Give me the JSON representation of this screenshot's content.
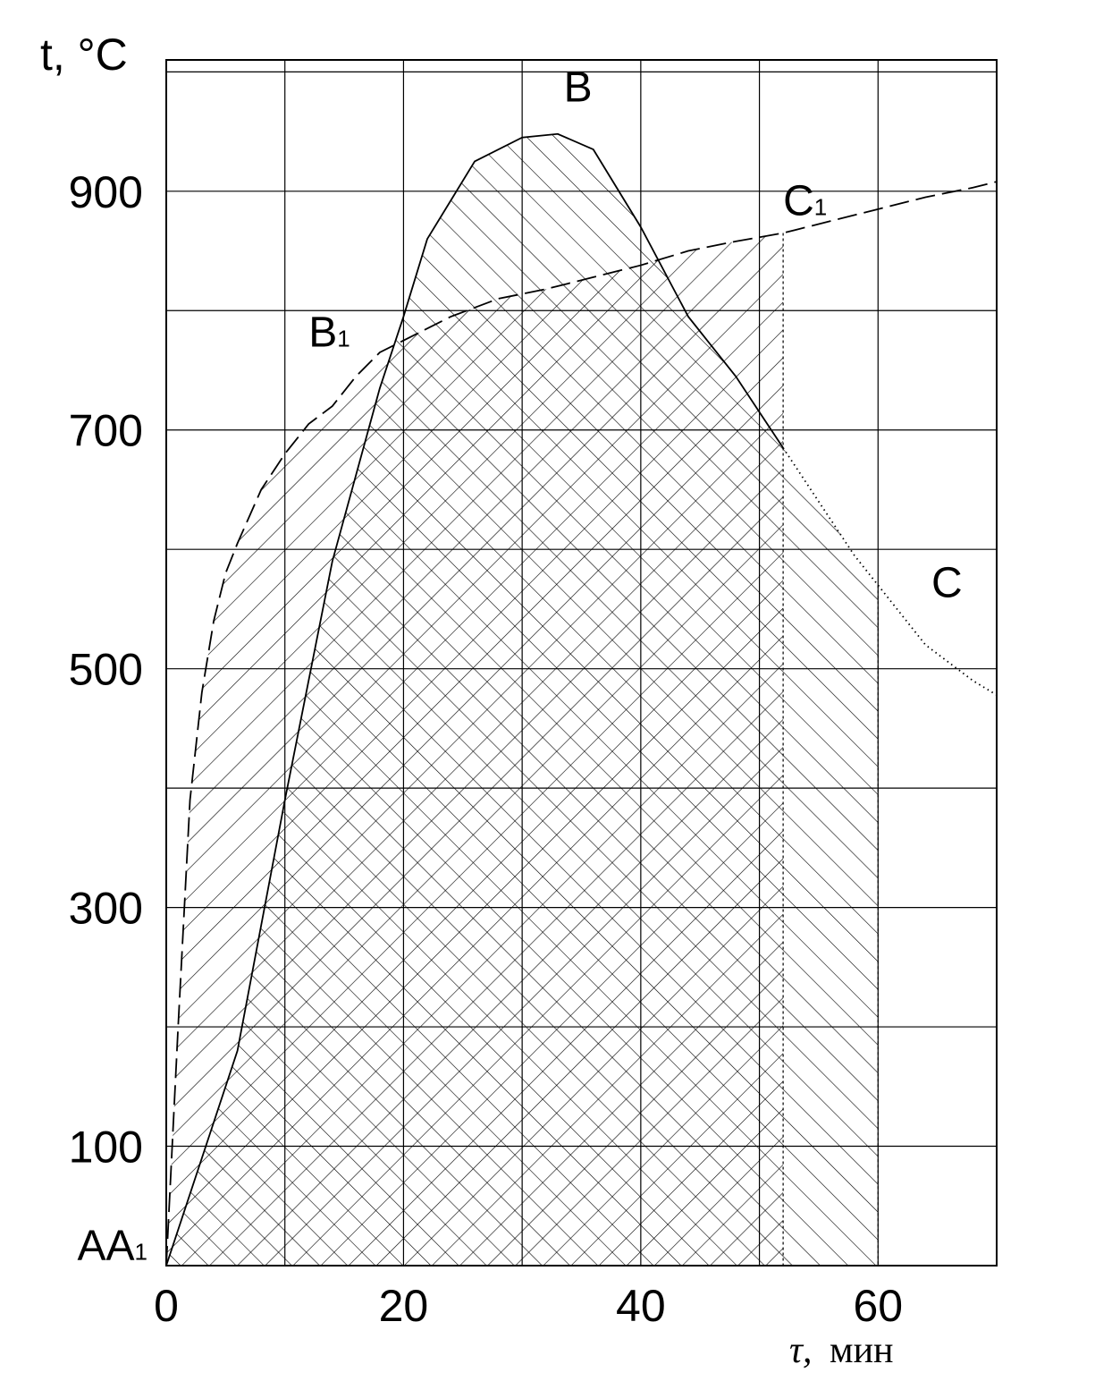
{
  "chart_data": {
    "type": "line",
    "ylabel": "t, °C",
    "xlabel_symbol": "τ,",
    "xlabel_unit": "мин",
    "xlim": [
      0,
      70
    ],
    "ylim": [
      0,
      1010
    ],
    "x_ticks": [
      0,
      20,
      40,
      60
    ],
    "y_ticks": [
      100,
      300,
      500,
      700,
      900
    ],
    "grid": true,
    "series": [
      {
        "name": "AB",
        "style": "solid",
        "x": [
          0,
          6,
          10,
          14,
          18,
          20,
          22,
          26,
          30,
          33,
          36,
          40,
          44,
          48,
          50,
          52
        ],
        "y": [
          0,
          180,
          390,
          590,
          735,
          795,
          860,
          925,
          945,
          948,
          935,
          870,
          795,
          745,
          715,
          685
        ]
      },
      {
        "name": "BC",
        "style": "dotted",
        "x": [
          52,
          55,
          58,
          60,
          62,
          64,
          66,
          68,
          70
        ],
        "y": [
          685,
          640,
          595,
          570,
          545,
          520,
          505,
          490,
          478
        ]
      },
      {
        "name": "A1B1C1",
        "style": "dashed",
        "x": [
          0,
          1,
          2,
          3,
          4,
          5,
          6,
          8,
          10,
          12,
          14,
          16,
          18,
          20,
          24,
          28,
          32,
          36,
          40,
          44,
          48,
          52,
          56,
          60,
          64,
          68,
          70
        ],
        "y": [
          0,
          200,
          390,
          480,
          540,
          580,
          605,
          650,
          680,
          705,
          720,
          745,
          765,
          775,
          795,
          810,
          818,
          828,
          838,
          850,
          858,
          865,
          875,
          885,
          895,
          903,
          908
        ]
      }
    ],
    "annotations": [
      {
        "text": "B",
        "x": 33.5,
        "y": 975
      },
      {
        "text": "B",
        "sub": "1",
        "x": 12,
        "y": 770
      },
      {
        "text": "C",
        "sub": "1",
        "x": 52,
        "y": 880
      },
      {
        "text": "C",
        "x": 64.5,
        "y": 560
      },
      {
        "text": "AA",
        "sub": "1",
        "x": -7.5,
        "y": 5
      }
    ]
  }
}
